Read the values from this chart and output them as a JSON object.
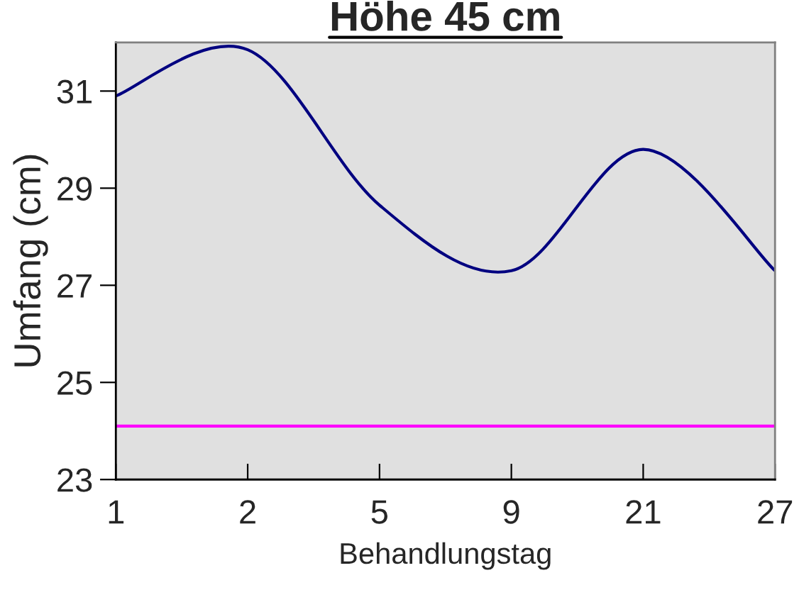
{
  "chart_data": {
    "type": "line",
    "title": "Höhe 45 cm",
    "xlabel": "Behandlungstag",
    "ylabel": "Umfang (cm)",
    "categories": [
      "1",
      "2",
      "5",
      "9",
      "21",
      "27"
    ],
    "series": [
      {
        "color": "#000080",
        "values": [
          30.9,
          31.85,
          28.65,
          27.3,
          29.8,
          27.3
        ]
      }
    ],
    "ylim": [
      23,
      32
    ],
    "yticks": [
      23,
      25,
      27,
      29,
      31
    ],
    "ref_lines": [
      {
        "axis": "y",
        "value": 24.1,
        "color": "#ff00ff"
      }
    ],
    "grid": false,
    "marker": "none",
    "line_style": "solid"
  }
}
